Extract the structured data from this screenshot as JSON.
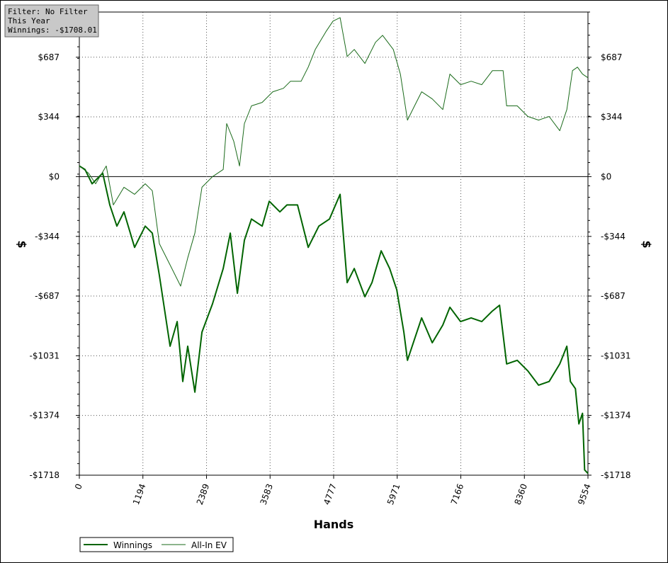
{
  "chart_data": {
    "type": "line",
    "annotations": [
      "Filter: No Filter",
      "This Year",
      "Winnings: -$1708.01"
    ],
    "xlabel": "Hands",
    "ylabel": "$",
    "y2label": "$",
    "xlim": [
      0,
      9554
    ],
    "xticks": [
      0,
      1194,
      2389,
      3583,
      4777,
      5971,
      7166,
      8360,
      9554
    ],
    "ylim": [
      -1718,
      947
    ],
    "yticks": [
      {
        "value": -1718,
        "label": "-$1718"
      },
      {
        "value": -1374,
        "label": "-$1374"
      },
      {
        "value": -1031,
        "label": "-$1031"
      },
      {
        "value": -687,
        "label": "-$687"
      },
      {
        "value": -344,
        "label": "-$344"
      },
      {
        "value": 0,
        "label": "$0"
      },
      {
        "value": 344,
        "label": "$344"
      },
      {
        "value": 687,
        "label": "$687"
      }
    ],
    "y2lim": [
      -1718,
      947
    ],
    "y2ticks": [
      {
        "value": -1718,
        "label": "-$1718"
      },
      {
        "value": -1374,
        "label": "-$1374"
      },
      {
        "value": -1031,
        "label": "-$1031"
      },
      {
        "value": -687,
        "label": "-$687"
      },
      {
        "value": -344,
        "label": "-$344"
      },
      {
        "value": 0,
        "label": "$0"
      },
      {
        "value": 344,
        "label": "$344"
      },
      {
        "value": 687,
        "label": "$687"
      }
    ],
    "grid": true,
    "legend": "bottom-left",
    "series": [
      {
        "name": "Winnings",
        "color": "#006400",
        "width": 2,
        "x": [
          0,
          106,
          240,
          439,
          572,
          705,
          838,
          1038,
          1238,
          1371,
          1504,
          1704,
          1837,
          1943,
          2036,
          2170,
          2303,
          2502,
          2702,
          2835,
          2968,
          3101,
          3234,
          3434,
          3567,
          3767,
          3900,
          4099,
          4299,
          4499,
          4698,
          4898,
          5031,
          5164,
          5364,
          5497,
          5670,
          5830,
          5963,
          6096,
          6163,
          6296,
          6429,
          6629,
          6828,
          6961,
          7161,
          7360,
          7560,
          7760,
          7893,
          8026,
          8226,
          8426,
          8626,
          8825,
          9025,
          9158,
          9224,
          9318,
          9384,
          9451,
          9491,
          9554
        ],
        "values": [
          61,
          41,
          -41,
          20,
          -163,
          -285,
          -203,
          -407,
          -285,
          -325,
          -569,
          -976,
          -834,
          -1179,
          -976,
          -1240,
          -895,
          -732,
          -529,
          -325,
          -671,
          -366,
          -244,
          -285,
          -142,
          -203,
          -163,
          -163,
          -407,
          -285,
          -244,
          -102,
          -610,
          -529,
          -691,
          -610,
          -427,
          -529,
          -651,
          -895,
          -1057,
          -935,
          -813,
          -956,
          -854,
          -752,
          -834,
          -813,
          -834,
          -773,
          -740,
          -1078,
          -1057,
          -1118,
          -1200,
          -1179,
          -1078,
          -976,
          -1179,
          -1220,
          -1423,
          -1362,
          -1688,
          -1708
        ]
      },
      {
        "name": "All-In EV",
        "color": "#1a6a1a",
        "width": 1,
        "x": [
          0,
          173,
          306,
          506,
          639,
          838,
          1038,
          1238,
          1371,
          1504,
          1704,
          1903,
          2036,
          2170,
          2303,
          2502,
          2702,
          2768,
          2901,
          3008,
          3101,
          3234,
          3434,
          3634,
          3833,
          3966,
          4166,
          4299,
          4432,
          4632,
          4765,
          4898,
          5031,
          5164,
          5364,
          5564,
          5697,
          5897,
          6030,
          6163,
          6296,
          6429,
          6629,
          6828,
          6961,
          7161,
          7360,
          7560,
          7760,
          7960,
          8026,
          8226,
          8426,
          8626,
          8825,
          9025,
          9158,
          9264,
          9357,
          9451,
          9554
        ],
        "values": [
          61,
          20,
          -41,
          61,
          -163,
          -61,
          -102,
          -41,
          -81,
          -386,
          -508,
          -630,
          -468,
          -325,
          -61,
          0,
          41,
          305,
          203,
          61,
          305,
          407,
          427,
          488,
          508,
          549,
          549,
          630,
          732,
          834,
          895,
          915,
          691,
          732,
          651,
          773,
          813,
          732,
          590,
          325,
          407,
          488,
          447,
          386,
          590,
          529,
          549,
          529,
          610,
          610,
          407,
          407,
          346,
          325,
          346,
          264,
          386,
          610,
          630,
          590,
          569
        ]
      }
    ]
  }
}
